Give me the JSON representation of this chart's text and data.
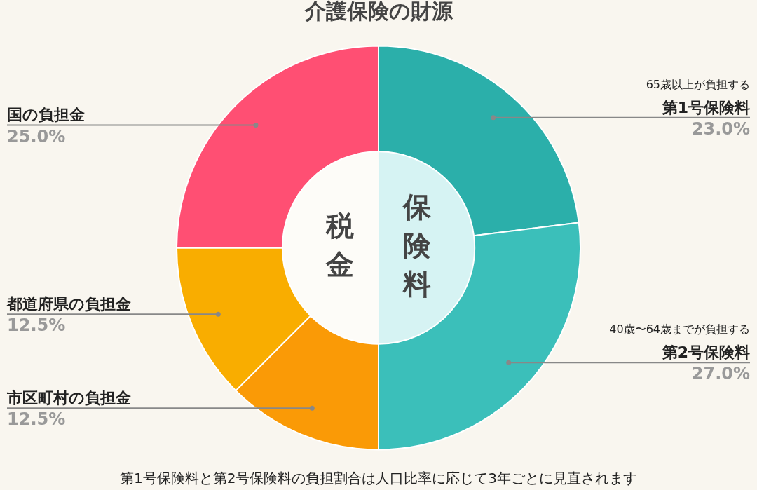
{
  "chart_data": {
    "type": "donut",
    "title": "介護保険の財源",
    "categories": [
      "第1号保険料",
      "第2号保険料",
      "市区町村の負担金",
      "都道府県の負担金",
      "国の負担金"
    ],
    "values": [
      23,
      27,
      12.5,
      12.5,
      25
    ],
    "value_labels": [
      "23.0%",
      "27.0%",
      "12.5%",
      "12.5%",
      "25.0%"
    ],
    "colors": [
      "#2bafaa",
      "#3bbfba",
      "#fa9a06",
      "#f9ad00",
      "#ff4f73"
    ],
    "legend": false,
    "annotations": [
      "保険料",
      "税金",
      {
        "text": "65歳以上が負担する",
        "x": "第1号保険料"
      },
      {
        "text": "40歳〜64歳までが負担する",
        "x": "第2号保険料"
      },
      "第1号保険料と第2号保険料の負担割合は人口比率に応じて3年ごとに見直されます"
    ]
  }
}
